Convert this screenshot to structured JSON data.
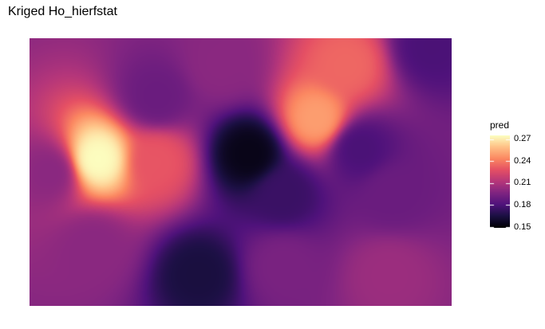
{
  "title": "Kriged Ho_hierfstat",
  "chart_data": {
    "type": "heatmap",
    "title": "Kriged Ho_hierfstat",
    "colorscale": "magma",
    "legend": {
      "title": "pred",
      "position": "right",
      "ticks": [
        "0.27",
        "0.24",
        "0.21",
        "0.18",
        "0.15"
      ],
      "tick_values": [
        0.27,
        0.24,
        0.21,
        0.18,
        0.15
      ],
      "range": [
        0.15,
        0.275
      ]
    },
    "grid": false,
    "features": [
      {
        "x": 0.05,
        "y": 0.5,
        "value": 0.2
      },
      {
        "x": 0.16,
        "y": 0.45,
        "value": 0.275
      },
      {
        "x": 0.3,
        "y": 0.46,
        "value": 0.23
      },
      {
        "x": 0.3,
        "y": 0.22,
        "value": 0.19
      },
      {
        "x": 0.75,
        "y": 0.1,
        "value": 0.235
      },
      {
        "x": 0.95,
        "y": 0.03,
        "value": 0.18
      },
      {
        "x": 0.68,
        "y": 0.3,
        "value": 0.25
      },
      {
        "x": 0.52,
        "y": 0.43,
        "value": 0.155
      },
      {
        "x": 0.78,
        "y": 0.41,
        "value": 0.18
      },
      {
        "x": 0.6,
        "y": 0.58,
        "value": 0.175
      },
      {
        "x": 0.86,
        "y": 0.58,
        "value": 0.19
      },
      {
        "x": 0.4,
        "y": 0.88,
        "value": 0.165
      },
      {
        "x": 0.15,
        "y": 0.78,
        "value": 0.2
      },
      {
        "x": 0.85,
        "y": 0.88,
        "value": 0.205
      },
      {
        "x": 0.6,
        "y": 0.85,
        "value": 0.195
      },
      {
        "x": 0.45,
        "y": 0.1,
        "value": 0.2
      }
    ]
  }
}
